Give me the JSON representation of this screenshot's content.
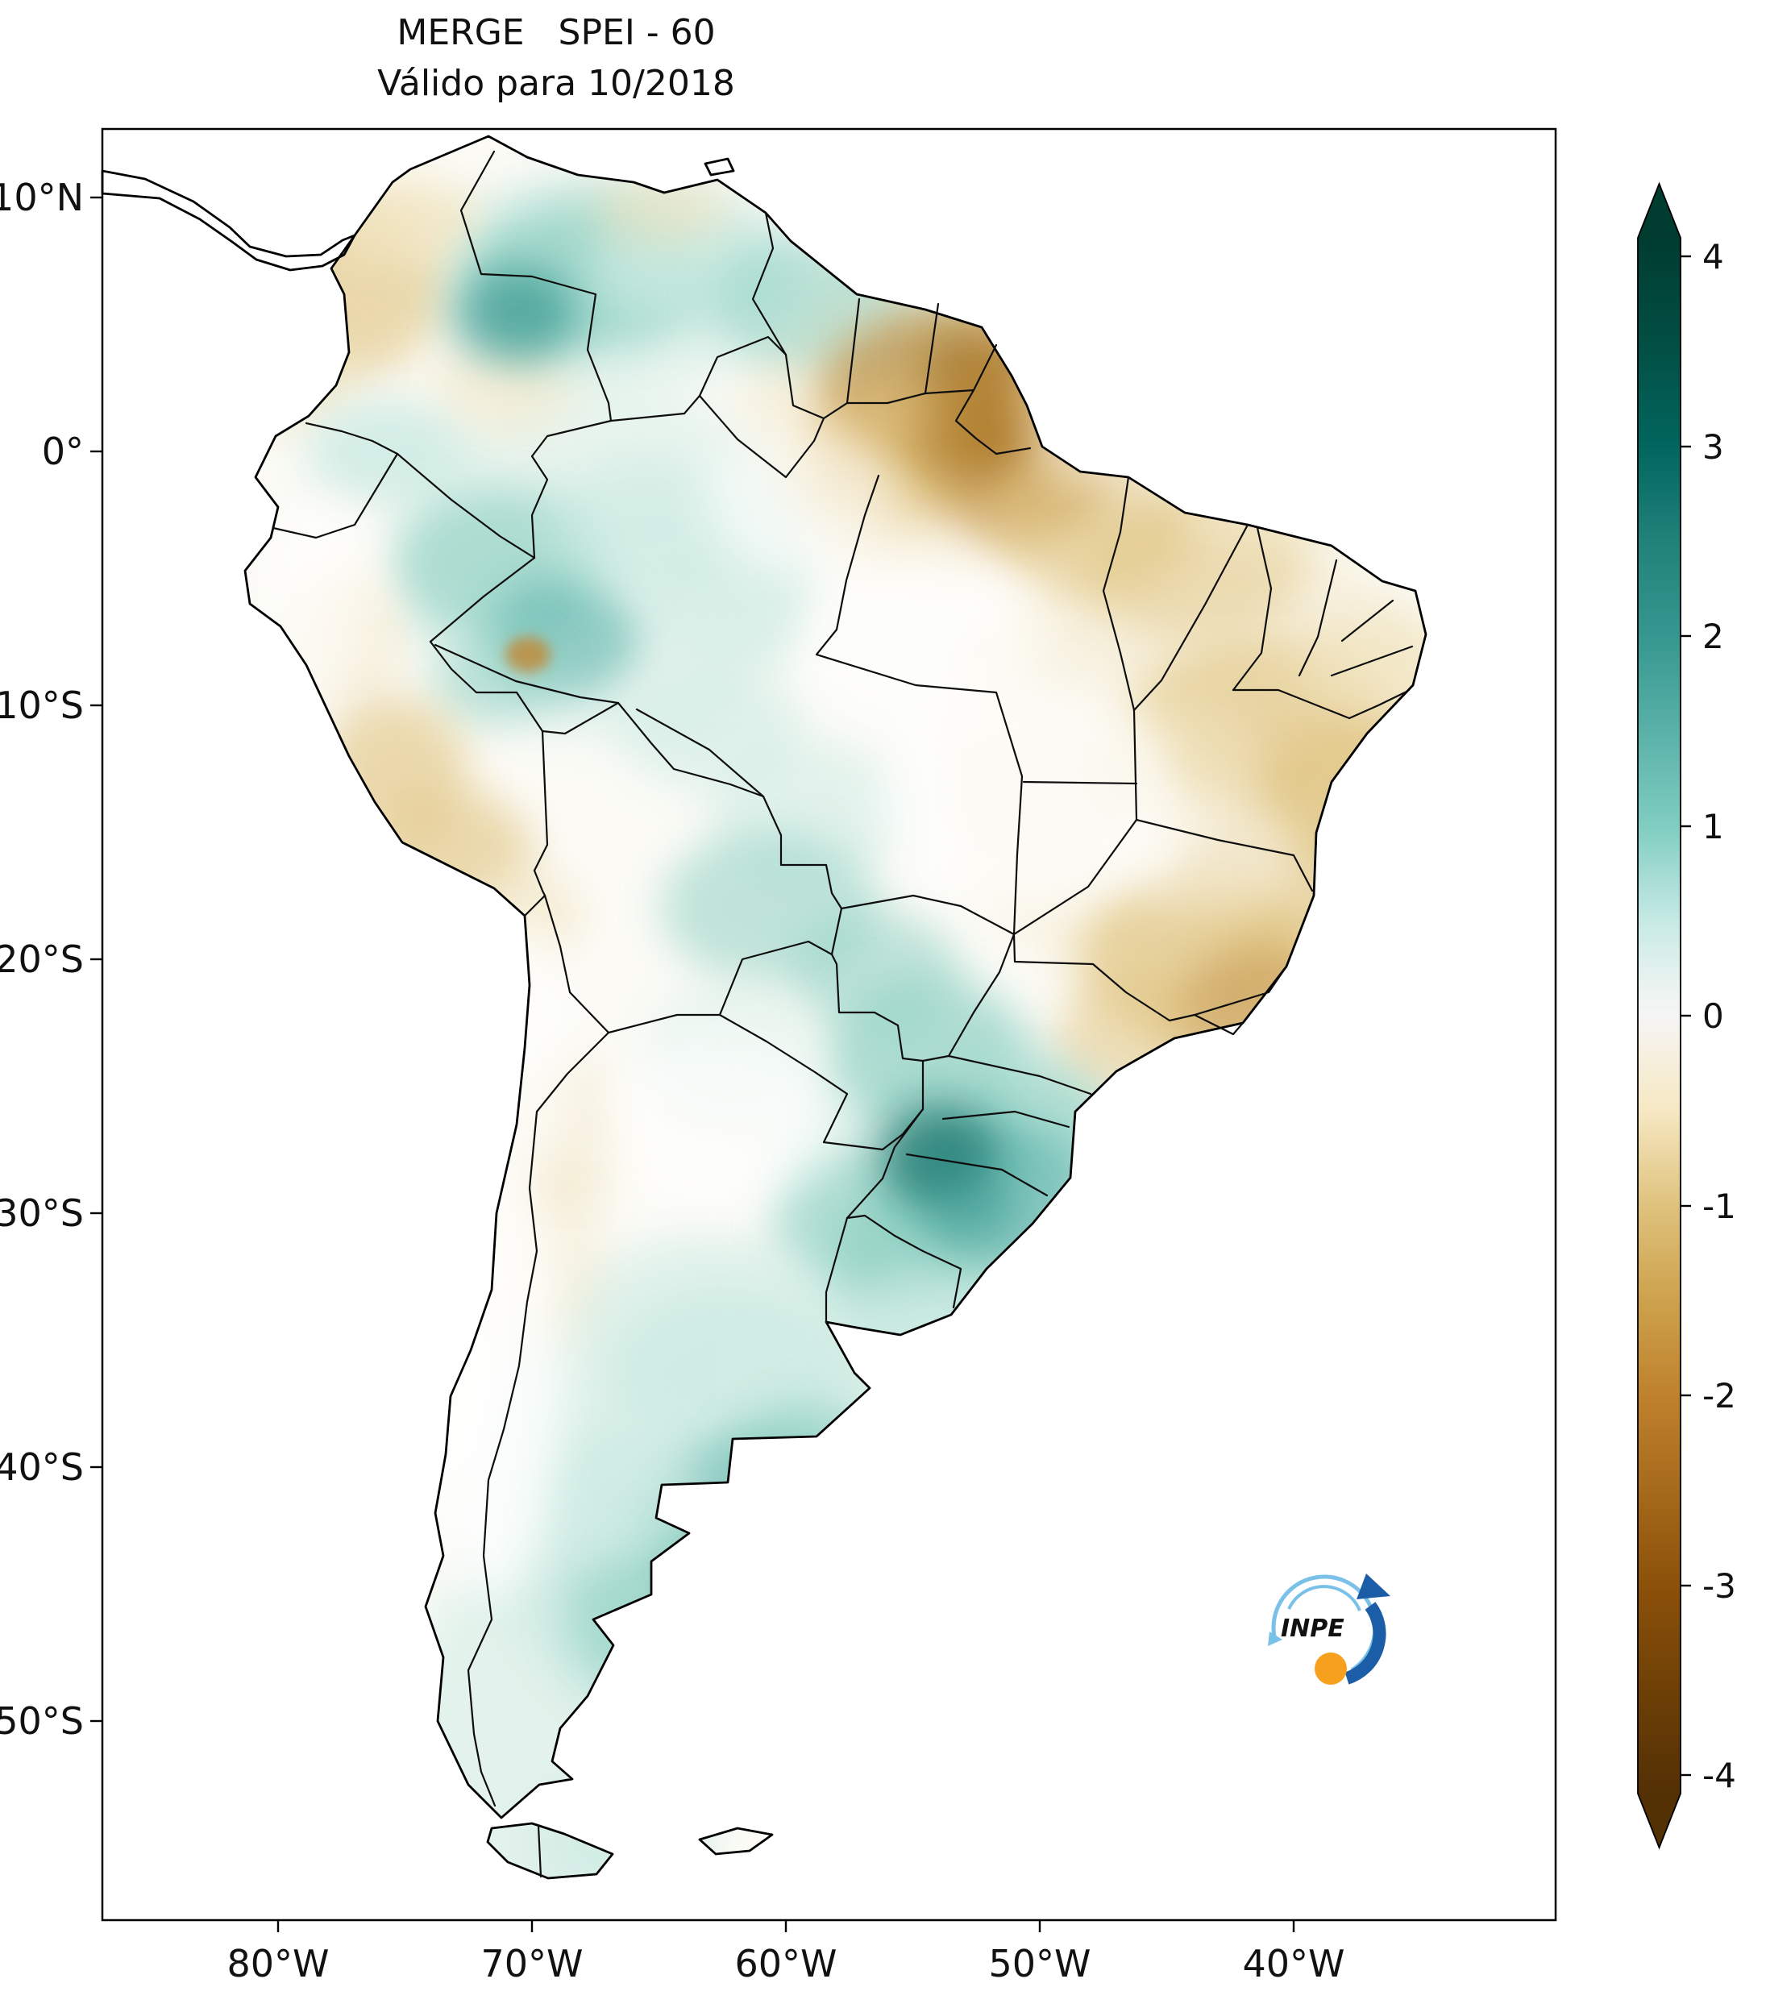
{
  "title": {
    "line1": "MERGE   SPEI - 60",
    "line2": "Válido para 10/2018"
  },
  "axes": {
    "lat": [
      "10°N",
      "0°",
      "10°S",
      "20°S",
      "30°S",
      "40°S",
      "50°S"
    ],
    "lon": [
      "80°W",
      "70°W",
      "60°W",
      "50°W",
      "40°W"
    ]
  },
  "colorbar": {
    "ticks": [
      "4",
      "3",
      "2",
      "1",
      "0",
      "-1",
      "-2",
      "-3",
      "-4"
    ],
    "min": -4,
    "max": 4,
    "tip_top": "#003c30",
    "tip_bottom": "#543005",
    "stops": [
      [
        0,
        "#003c30"
      ],
      [
        0.067,
        "#024e43"
      ],
      [
        0.134,
        "#01665e"
      ],
      [
        0.195,
        "#21827a"
      ],
      [
        0.256,
        "#35978f"
      ],
      [
        0.317,
        "#59b1a8"
      ],
      [
        0.378,
        "#80cdc1"
      ],
      [
        0.44,
        "#c7eae5"
      ],
      [
        0.48,
        "#eaf3f0"
      ],
      [
        0.5,
        "#f5f5f5"
      ],
      [
        0.52,
        "#f6f1e3"
      ],
      [
        0.561,
        "#f6e8c3"
      ],
      [
        0.622,
        "#dfc27d"
      ],
      [
        0.683,
        "#cda24c"
      ],
      [
        0.744,
        "#bf812d"
      ],
      [
        0.805,
        "#a66a1b"
      ],
      [
        0.866,
        "#8c510a"
      ],
      [
        0.933,
        "#6e4006"
      ],
      [
        1,
        "#543005"
      ]
    ]
  },
  "logo": {
    "text": "INPE",
    "blue": "#1b5ea7",
    "light_blue": "#79c1e8",
    "orange": "#f7a01d",
    "text_color": "#14518f"
  },
  "palette": {
    "t1": "#c9eae2",
    "t2": "#8fd0c3",
    "t3": "#5ab4ac",
    "t4": "#35978f",
    "t5": "#17756c",
    "b1": "#f1e4bf",
    "b2": "#dfc27d",
    "b3": "#c08c3e",
    "b4": "#99650f",
    "w": "#ffffff"
  },
  "field_blobs": [
    [
      1500,
      950,
      330,
      300,
      "b1",
      0.4
    ],
    [
      1180,
      520,
      260,
      200,
      "b1",
      0.45
    ],
    [
      880,
      1850,
      280,
      320,
      "t1",
      0.55
    ],
    [
      700,
      2150,
      200,
      250,
      "t1",
      0.5
    ],
    [
      1180,
      1480,
      220,
      220,
      "t1",
      0.5
    ],
    [
      750,
      700,
      260,
      220,
      "t1",
      0.4
    ],
    [
      760,
      350,
      240,
      140,
      "t1",
      0.45
    ],
    [
      420,
      360,
      130,
      110,
      "b2",
      0.6
    ],
    [
      500,
      275,
      95,
      55,
      "b1",
      0.8
    ],
    [
      350,
      465,
      85,
      65,
      "b1",
      0.7
    ],
    [
      620,
      480,
      90,
      60,
      "b1",
      0.5
    ],
    [
      730,
      340,
      150,
      95,
      "t2",
      0.75
    ],
    [
      640,
      390,
      75,
      60,
      "t4",
      0.7
    ],
    [
      855,
      330,
      120,
      70,
      "t1",
      0.8
    ],
    [
      1000,
      375,
      120,
      80,
      "t2",
      0.55
    ],
    [
      1120,
      425,
      95,
      65,
      "t1",
      0.7
    ],
    [
      1170,
      485,
      150,
      105,
      "b3",
      0.7
    ],
    [
      1265,
      575,
      125,
      95,
      "b3",
      0.65
    ],
    [
      1100,
      565,
      105,
      85,
      "b2",
      0.6
    ],
    [
      1355,
      645,
      130,
      95,
      "b2",
      0.55
    ],
    [
      1210,
      455,
      65,
      45,
      "b4",
      0.5
    ],
    [
      1480,
      705,
      140,
      90,
      "b2",
      0.45
    ],
    [
      1570,
      625,
      100,
      60,
      "b1",
      0.6
    ],
    [
      480,
      560,
      100,
      65,
      "t1",
      0.8
    ],
    [
      620,
      700,
      130,
      95,
      "t2",
      0.65
    ],
    [
      700,
      790,
      95,
      75,
      "t3",
      0.6
    ],
    [
      610,
      845,
      75,
      55,
      "t2",
      0.5
    ],
    [
      800,
      655,
      120,
      85,
      "t1",
      0.6
    ],
    [
      905,
      755,
      105,
      75,
      "t1",
      0.45
    ],
    [
      430,
      790,
      65,
      85,
      "b1",
      0.55
    ],
    [
      490,
      955,
      90,
      90,
      "b2",
      0.6
    ],
    [
      565,
      1055,
      95,
      75,
      "b2",
      0.6
    ],
    [
      645,
      1135,
      75,
      55,
      "b1",
      0.65
    ],
    [
      885,
      905,
      115,
      75,
      "t1",
      0.55
    ],
    [
      1005,
      1005,
      125,
      85,
      "t1",
      0.5
    ],
    [
      955,
      1125,
      135,
      95,
      "t2",
      0.55
    ],
    [
      1085,
      1205,
      105,
      75,
      "t2",
      0.55
    ],
    [
      1565,
      905,
      165,
      115,
      "b2",
      0.6
    ],
    [
      1685,
      985,
      125,
      105,
      "b2",
      0.55
    ],
    [
      1455,
      955,
      105,
      85,
      "b1",
      0.6
    ],
    [
      1605,
      1105,
      145,
      105,
      "b2",
      0.5
    ],
    [
      1705,
      825,
      95,
      65,
      "b1",
      0.7
    ],
    [
      1485,
      1185,
      145,
      105,
      "b2",
      0.65
    ],
    [
      1565,
      1265,
      115,
      85,
      "b3",
      0.5
    ],
    [
      1405,
      1285,
      95,
      75,
      "b2",
      0.5
    ],
    [
      1150,
      1305,
      125,
      95,
      "t2",
      0.65
    ],
    [
      1285,
      1395,
      95,
      75,
      "t2",
      0.6
    ],
    [
      1235,
      1485,
      125,
      95,
      "t3",
      0.65
    ],
    [
      1135,
      1555,
      105,
      85,
      "t2",
      0.7
    ],
    [
      1155,
      1655,
      105,
      75,
      "t1",
      0.75
    ],
    [
      1055,
      1505,
      95,
      75,
      "t2",
      0.6
    ],
    [
      905,
      1705,
      150,
      105,
      "t1",
      0.7
    ],
    [
      955,
      1905,
      165,
      125,
      "t3",
      0.6
    ],
    [
      825,
      2005,
      125,
      105,
      "t2",
      0.65
    ],
    [
      1005,
      1825,
      105,
      85,
      "t2",
      0.6
    ],
    [
      765,
      1855,
      105,
      85,
      "t1",
      0.7
    ],
    [
      660,
      1555,
      85,
      130,
      "b1",
      0.4
    ],
    [
      705,
      1405,
      75,
      95,
      "b1",
      0.4
    ],
    [
      905,
      1305,
      105,
      85,
      "t1",
      0.4
    ],
    [
      770,
      2285,
      105,
      75,
      "t1",
      0.6
    ],
    [
      820,
      260,
      85,
      45,
      "b1",
      0.6
    ],
    [
      1280,
      985,
      185,
      145,
      "w",
      0.7
    ],
    [
      1145,
      795,
      150,
      105,
      "w",
      0.6
    ],
    [
      890,
      1390,
      140,
      115,
      "w",
      0.6
    ],
    [
      612,
      1705,
      85,
      280,
      "w",
      0.8
    ],
    [
      640,
      1300,
      70,
      170,
      "w",
      0.6
    ],
    [
      395,
      745,
      65,
      125,
      "w",
      0.6
    ],
    [
      1390,
      520,
      120,
      90,
      "w",
      0.5
    ],
    [
      990,
      620,
      120,
      90,
      "w",
      0.5
    ],
    [
      1500,
      1060,
      110,
      80,
      "w",
      0.4
    ],
    [
      655,
      812,
      28,
      22,
      "b3",
      0.85,
      "sm"
    ],
    [
      1163,
      1432,
      75,
      65,
      "t5",
      0.75
    ],
    [
      1205,
      1500,
      60,
      50,
      "t4",
      0.5
    ],
    [
      1205,
      545,
      70,
      55,
      "b4",
      0.45
    ],
    [
      950,
      1950,
      90,
      70,
      "t3",
      0.5
    ]
  ]
}
